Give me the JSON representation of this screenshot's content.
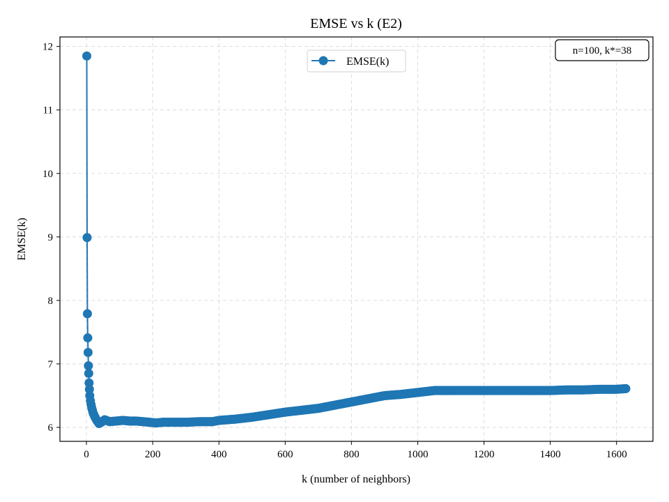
{
  "chart_data": {
    "type": "line",
    "title": "EMSE vs k (E2)",
    "xlabel": "k (number of neighbors)",
    "ylabel": "EMSE(k)",
    "xlim": [
      -80,
      1710
    ],
    "ylim": [
      5.78,
      12.15
    ],
    "xticks": [
      0,
      200,
      400,
      600,
      800,
      1000,
      1200,
      1400,
      1600
    ],
    "yticks": [
      6,
      7,
      8,
      9,
      10,
      11,
      12
    ],
    "grid": true,
    "legend": {
      "placement": "upper center",
      "entries": [
        "EMSE(k)"
      ]
    },
    "annotation": "n=100, k*=38",
    "annotation_placement": "top-right",
    "color": "#1f77b4",
    "series": [
      {
        "name": "EMSE(k)",
        "x": [
          1,
          2,
          3,
          4,
          5,
          6,
          7,
          8,
          9,
          10,
          12,
          14,
          16,
          18,
          20,
          25,
          30,
          38,
          45,
          55,
          70,
          90,
          110,
          130,
          150,
          170,
          190,
          210,
          230,
          260,
          300,
          340,
          380,
          400,
          450,
          500,
          550,
          600,
          650,
          700,
          750,
          800,
          850,
          900,
          950,
          1000,
          1050,
          1100,
          1150,
          1200,
          1250,
          1300,
          1350,
          1400,
          1450,
          1500,
          1550,
          1600,
          1628
        ],
        "y": [
          11.85,
          8.99,
          7.79,
          7.41,
          7.18,
          6.97,
          6.85,
          6.7,
          6.6,
          6.5,
          6.42,
          6.36,
          6.31,
          6.27,
          6.23,
          6.17,
          6.12,
          6.06,
          6.08,
          6.12,
          6.09,
          6.1,
          6.11,
          6.1,
          6.1,
          6.09,
          6.08,
          6.07,
          6.08,
          6.08,
          6.08,
          6.09,
          6.09,
          6.11,
          6.13,
          6.16,
          6.2,
          6.24,
          6.27,
          6.3,
          6.35,
          6.4,
          6.45,
          6.5,
          6.52,
          6.55,
          6.58,
          6.58,
          6.58,
          6.58,
          6.58,
          6.58,
          6.58,
          6.58,
          6.59,
          6.59,
          6.6,
          6.6,
          6.61
        ]
      }
    ]
  }
}
